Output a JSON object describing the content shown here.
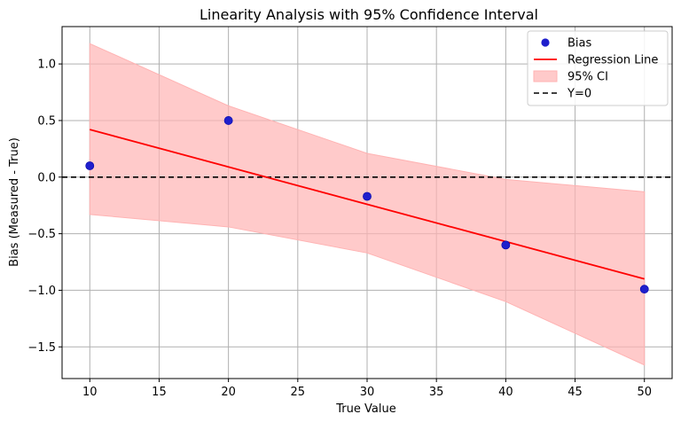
{
  "chart_data": {
    "type": "scatter",
    "title": "Linearity Analysis with 95% Confidence Interval",
    "xlabel": "True Value",
    "ylabel": "Bias (Measured - True)",
    "xlim": [
      8,
      52
    ],
    "ylim": [
      -1.78,
      1.33
    ],
    "xticks": [
      10,
      15,
      20,
      25,
      30,
      35,
      40,
      45,
      50
    ],
    "yticks": [
      -1.5,
      -1.0,
      -0.5,
      0.0,
      0.5,
      1.0
    ],
    "ytick_labels": [
      "−1.5",
      "−1.0",
      "−0.5",
      "0.0",
      "0.5",
      "1.0"
    ],
    "grid": true,
    "legend_position": "top-right",
    "series": [
      {
        "name": "Bias",
        "kind": "scatter",
        "color": "#1f1fcc",
        "x": [
          10,
          20,
          30,
          40,
          50
        ],
        "y": [
          0.1,
          0.5,
          -0.17,
          -0.6,
          -0.99
        ]
      },
      {
        "name": "Regression Line",
        "kind": "line",
        "color": "#ff0000",
        "x": [
          10,
          50
        ],
        "y": [
          0.42,
          -0.9
        ]
      },
      {
        "name": "95% CI",
        "kind": "band",
        "color": "#ffb3b3",
        "x": [
          10,
          20,
          30,
          40,
          50
        ],
        "upper": [
          1.18,
          0.63,
          0.21,
          -0.02,
          -0.13
        ],
        "lower": [
          -0.33,
          -0.44,
          -0.67,
          -1.1,
          -1.66
        ]
      },
      {
        "name": "Y=0",
        "kind": "hline",
        "color": "#000000",
        "y": 0
      }
    ]
  }
}
